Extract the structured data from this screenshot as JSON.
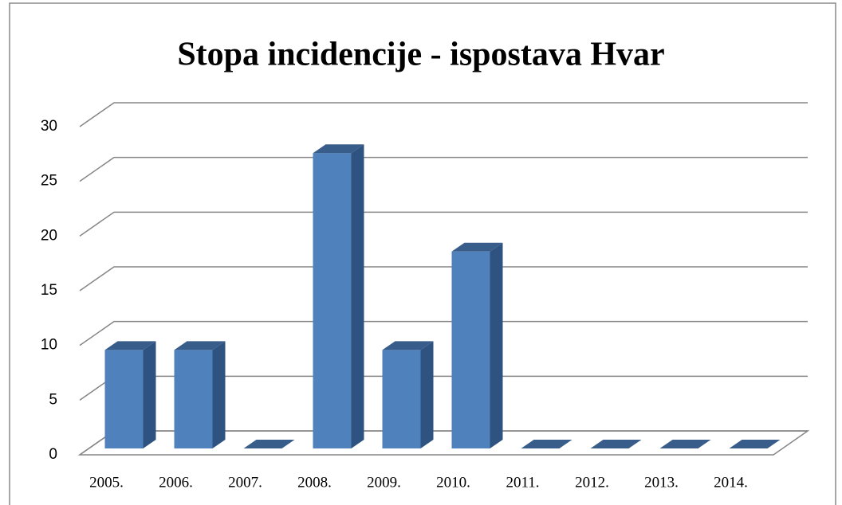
{
  "chart_data": {
    "type": "bar3d",
    "title": "Stopa incidencije - ispostava Hvar",
    "categories": [
      "2005.",
      "2006.",
      "2007.",
      "2008.",
      "2009.",
      "2010.",
      "2011.",
      "2012.",
      "2013.",
      "2014."
    ],
    "values": [
      9,
      9,
      0,
      27,
      9,
      18,
      0,
      0,
      0,
      0
    ],
    "color": "#4f81bd",
    "ylim": [
      0,
      30
    ],
    "yticks": [
      0,
      5,
      10,
      15,
      20,
      25,
      30
    ],
    "grid": true
  }
}
